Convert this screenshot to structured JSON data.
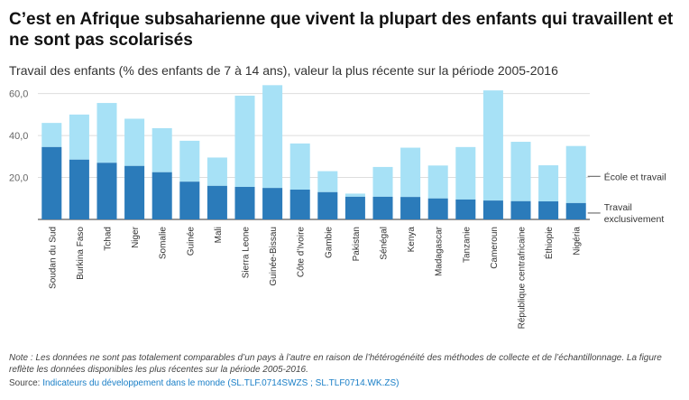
{
  "header": {
    "title": "C’est en Afrique subsaharienne que vivent la plupart des enfants qui travaillent et ne sont pas scolarisés",
    "subtitle": "Travail des enfants (% des enfants de 7 à 14 ans), valeur la plus récente sur la période 2005-2016"
  },
  "colors": {
    "work_only": "#2b7bba",
    "school_and_work": "#a7e1f6",
    "grid": "#dddddd",
    "axis": "#333333"
  },
  "chart_data": {
    "type": "bar",
    "stacked": true,
    "categories": [
      "Soudan du Sud",
      "Burkina Faso",
      "Tchad",
      "Niger",
      "Somalie",
      "Guinée",
      "Mali",
      "Sierra Leone",
      "Guinée-Bissau",
      "Côte d’Ivoire",
      "Gambie",
      "Pakistan",
      "Sénégal",
      "Kenya",
      "Madagascar",
      "Tanzanie",
      "Cameroun",
      "République centrafricaine",
      "Éthiopie",
      "Nigéria"
    ],
    "series": [
      {
        "name": "Travail exclusivement",
        "values": [
          34.5,
          28.5,
          27,
          25.5,
          22.5,
          18,
          16,
          15.5,
          15,
          14.2,
          13,
          10.8,
          10.8,
          10.7,
          10,
          9.5,
          9,
          8.7,
          8.6,
          7.8
        ]
      },
      {
        "name": "École et travail",
        "values": [
          11.5,
          21.5,
          28.5,
          22.5,
          21,
          19.5,
          13.5,
          43.5,
          49,
          22,
          10,
          1.5,
          14.2,
          23.5,
          15.7,
          25,
          52.5,
          28.3,
          17.2,
          27.2
        ]
      }
    ],
    "legend_labels": {
      "school_and_work": "École et travail",
      "work_only_line1": "Travail",
      "work_only_line2": "exclusivement"
    },
    "ylim": [
      0,
      65
    ],
    "yticks": [
      20,
      40,
      60
    ],
    "ytick_labels": [
      "20,0",
      "40,0",
      "60,0"
    ],
    "grid": true,
    "legend": "right"
  },
  "footer": {
    "note": "Note : Les données ne sont pas totalement comparables d’un pays à l’autre en raison de l’hétérogénéité des méthodes de collecte et de l’échantillonnage. La figure reflète les données disponibles les plus récentes sur la période 2005-2016.",
    "source_label": "Source: ",
    "source_link": "Indicateurs du développement dans le monde (SL.TLF.0714SWZS ; SL.TLF0714.WK.ZS)"
  }
}
